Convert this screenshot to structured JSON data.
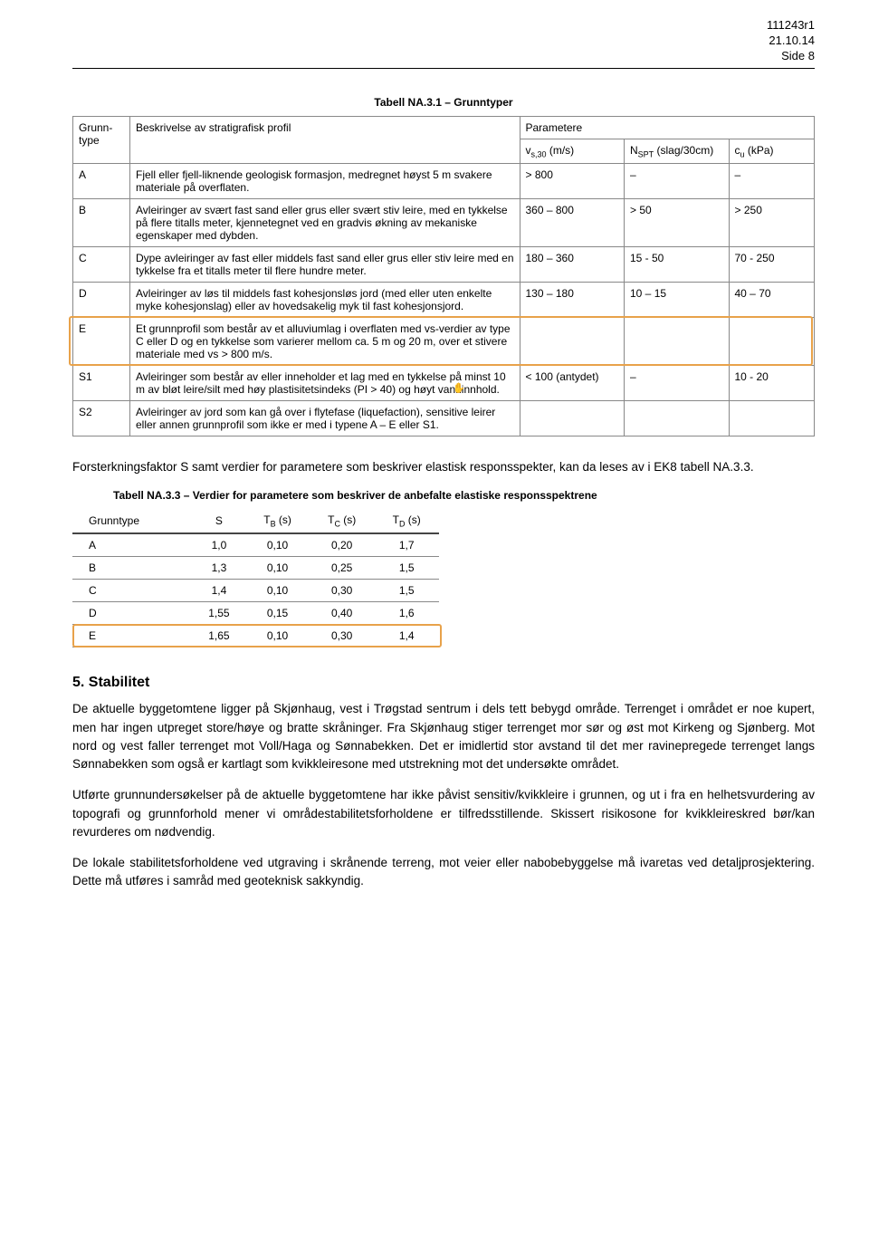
{
  "header": {
    "doc": "111243r1",
    "date": "21.10.14",
    "page": "Side 8"
  },
  "table1": {
    "caption": "Tabell NA.3.1 – Grunntyper",
    "columns": [
      "Grunn-type",
      "Beskrivelse av stratigrafisk profil",
      "Parametere"
    ],
    "subcolumns": [
      "vs,30 (m/s)",
      "NSPT (slag/30cm)",
      "cu (kPa)"
    ],
    "rows": [
      {
        "type": "A",
        "desc": "Fjell eller fjell-liknende geologisk formasjon, medregnet høyst 5 m svakere materiale på overflaten.",
        "p1": "> 800",
        "p2": "–",
        "p3": "–"
      },
      {
        "type": "B",
        "desc": "Avleiringer av svært fast sand eller grus eller svært stiv leire, med en tykkelse på flere titalls meter, kjennetegnet ved en gradvis økning av mekaniske egenskaper med dybden.",
        "p1": "360 – 800",
        "p2": "> 50",
        "p3": "> 250"
      },
      {
        "type": "C",
        "desc": "Dype avleiringer av fast eller middels fast sand eller grus eller stiv leire med en tykkelse fra et titalls meter til flere hundre meter.",
        "p1": "180 – 360",
        "p2": "15 - 50",
        "p3": "70 - 250"
      },
      {
        "type": "D",
        "desc": "Avleiringer av løs til middels fast kohesjonsløs jord (med eller uten enkelte myke kohesjonslag) eller av hovedsakelig myk til fast kohesjonsjord.",
        "p1": "130 – 180",
        "p2": "10 – 15",
        "p3": "40 – 70"
      },
      {
        "type": "E",
        "desc": "Et grunnprofil som består av et alluviumlag i overflaten med vs-verdier av type C eller D og en tykkelse som varierer mellom ca. 5 m og 20 m, over et stivere materiale med vs > 800 m/s.",
        "p1": "",
        "p2": "",
        "p3": "",
        "highlight": true
      },
      {
        "type": "S1",
        "desc": "Avleiringer som består av eller inneholder et lag med en tykkelse på minst 10 m av bløt leire/silt med høy plastisitetsindeks (PI > 40) og høyt vanninnhold.",
        "p1": "< 100 (antydet)",
        "p2": "–",
        "p3": "10 - 20"
      },
      {
        "type": "S2",
        "desc": "Avleiringer av jord som kan gå over i flytefase (liquefaction), sensitive leirer eller annen grunnprofil som ikke er med i typene A – E eller S1.",
        "p1": "",
        "p2": "",
        "p3": ""
      }
    ],
    "highlight_color": "#e8a24a"
  },
  "para1": "Forsterkningsfaktor S samt verdier for parametere som beskriver elastisk responsspekter, kan da leses av i EK8 tabell NA.3.3.",
  "table2": {
    "caption": "Tabell NA.3.3 – Verdier for parametere som beskriver de anbefalte elastiske responsspektrene",
    "columns": [
      "Grunntype",
      "S",
      "TB (s)",
      "TC (s)",
      "TD (s)"
    ],
    "rows": [
      {
        "g": "A",
        "s": "1,0",
        "tb": "0,10",
        "tc": "0,20",
        "td": "1,7"
      },
      {
        "g": "B",
        "s": "1,3",
        "tb": "0,10",
        "tc": "0,25",
        "td": "1,5"
      },
      {
        "g": "C",
        "s": "1,4",
        "tb": "0,10",
        "tc": "0,30",
        "td": "1,5"
      },
      {
        "g": "D",
        "s": "1,55",
        "tb": "0,15",
        "tc": "0,40",
        "td": "1,6"
      },
      {
        "g": "E",
        "s": "1,65",
        "tb": "0,10",
        "tc": "0,30",
        "td": "1,4",
        "highlight": true
      }
    ],
    "highlight_color": "#e8a24a"
  },
  "section5": {
    "title": "5. Stabilitet",
    "p1": "De aktuelle byggetomtene ligger på Skjønhaug, vest i Trøgstad sentrum i dels tett bebygd område. Terrenget i området er noe kupert, men har ingen utpreget store/høye og bratte skråninger. Fra Skjønhaug stiger terrenget mor sør og øst mot Kirkeng og Sjønberg. Mot nord og vest faller terrenget mot Voll/Haga og Sønnabekken. Det er imidlertid stor avstand til det mer ravinepregede terrenget langs Sønnabekken som også er kartlagt som kvikkleiresone med utstrekning mot det undersøkte området.",
    "p2": "Utførte grunnundersøkelser på de aktuelle byggetomtene har ikke påvist sensitiv/kvikkleire i grunnen, og ut i fra en helhetsvurdering av topografi og grunnforhold mener vi områdestabilitetsforholdene er tilfredsstillende. Skissert risikosone for kvikkleireskred bør/kan revurderes om nødvendig.",
    "p3": "De lokale stabilitetsforholdene ved utgraving i skrånende terreng, mot veier eller nabobebyggelse må ivaretas ved detaljprosjektering. Dette må utføres i samråd med geoteknisk sakkyndig."
  },
  "colors": {
    "text": "#000000",
    "border": "#888888",
    "highlight": "#e8a24a",
    "background": "#ffffff"
  },
  "fonts": {
    "body": "Comic Sans MS",
    "tables": "Arial",
    "size_body": 13.5,
    "size_table": 12
  }
}
